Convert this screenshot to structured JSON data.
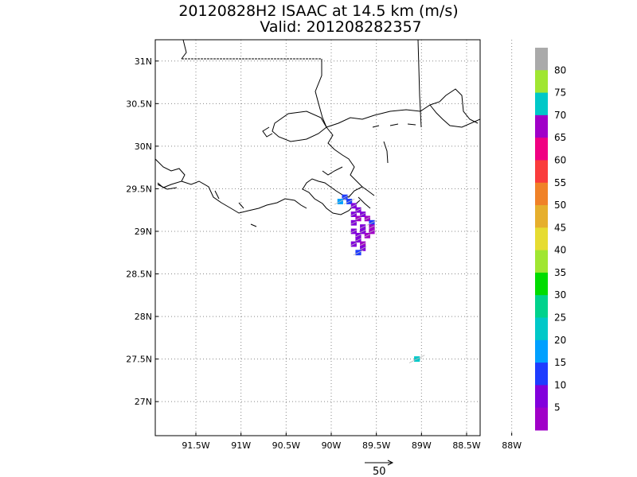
{
  "title": {
    "line1": "20120828H2 ISAAC at 14.5 km (m/s)",
    "line2": "Valid: 201208282357"
  },
  "map": {
    "lon_range": [
      -91.95,
      -88.35
    ],
    "lat_range": [
      26.6,
      31.25
    ],
    "lon_ticks": [
      {
        "value": -91.5,
        "label": "91.5W"
      },
      {
        "value": -91.0,
        "label": "91W"
      },
      {
        "value": -90.5,
        "label": "90.5W"
      },
      {
        "value": -90.0,
        "label": "90W"
      },
      {
        "value": -89.5,
        "label": "89.5W"
      },
      {
        "value": -89.0,
        "label": "89W"
      },
      {
        "value": -88.5,
        "label": "88.5W"
      },
      {
        "value": -88.0,
        "label": "88W"
      }
    ],
    "lat_ticks": [
      {
        "value": 31.0,
        "label": "31N"
      },
      {
        "value": 30.5,
        "label": "30.5N"
      },
      {
        "value": 30.0,
        "label": "30N"
      },
      {
        "value": 29.5,
        "label": "29.5N"
      },
      {
        "value": 29.0,
        "label": "29N"
      },
      {
        "value": 28.5,
        "label": "28.5N"
      },
      {
        "value": 28.0,
        "label": "28N"
      },
      {
        "value": 27.5,
        "label": "27.5N"
      },
      {
        "value": 27.0,
        "label": "27N"
      }
    ],
    "grid": "dotted"
  },
  "wind_cells": [
    {
      "lon": -89.85,
      "lat": 29.4,
      "speed": 14
    },
    {
      "lon": -89.8,
      "lat": 29.35,
      "speed": 13
    },
    {
      "lon": -89.9,
      "lat": 29.35,
      "speed": 15
    },
    {
      "lon": -89.75,
      "lat": 29.3,
      "speed": 9
    },
    {
      "lon": -89.7,
      "lat": 29.25,
      "speed": 6
    },
    {
      "lon": -89.75,
      "lat": 29.2,
      "speed": 7
    },
    {
      "lon": -89.65,
      "lat": 29.2,
      "speed": 5
    },
    {
      "lon": -89.7,
      "lat": 29.15,
      "speed": 4
    },
    {
      "lon": -89.6,
      "lat": 29.15,
      "speed": 3
    },
    {
      "lon": -89.55,
      "lat": 29.1,
      "speed": 12
    },
    {
      "lon": -89.75,
      "lat": 29.1,
      "speed": 6
    },
    {
      "lon": -89.65,
      "lat": 29.05,
      "speed": 5
    },
    {
      "lon": -89.55,
      "lat": 29.05,
      "speed": 4
    },
    {
      "lon": -89.75,
      "lat": 29.0,
      "speed": 7
    },
    {
      "lon": -89.65,
      "lat": 29.0,
      "speed": 5
    },
    {
      "lon": -89.55,
      "lat": 29.0,
      "speed": 3
    },
    {
      "lon": -89.7,
      "lat": 28.95,
      "speed": 6
    },
    {
      "lon": -89.6,
      "lat": 28.95,
      "speed": 4
    },
    {
      "lon": -89.7,
      "lat": 28.9,
      "speed": 5
    },
    {
      "lon": -89.65,
      "lat": 28.85,
      "speed": 4
    },
    {
      "lon": -89.75,
      "lat": 28.85,
      "speed": 6
    },
    {
      "lon": -89.65,
      "lat": 28.8,
      "speed": 7
    },
    {
      "lon": -89.7,
      "lat": 28.75,
      "speed": 12
    },
    {
      "lon": -89.05,
      "lat": 27.5,
      "speed": 22
    }
  ],
  "colorbar": {
    "labels": [
      "5",
      "10",
      "15",
      "20",
      "25",
      "30",
      "35",
      "40",
      "45",
      "50",
      "55",
      "60",
      "65",
      "70",
      "75",
      "80"
    ],
    "colors": [
      "#a000c8",
      "#8200dc",
      "#1e3cff",
      "#00a0ff",
      "#00c8c8",
      "#00d28c",
      "#00dc00",
      "#a0e632",
      "#e6dc32",
      "#e6af2d",
      "#f08228",
      "#fa3c3c",
      "#f00082",
      "#a000c8",
      "#00c8c8",
      "#a0e632",
      "#aaaaaa"
    ]
  },
  "vector_key": {
    "label": "50"
  }
}
